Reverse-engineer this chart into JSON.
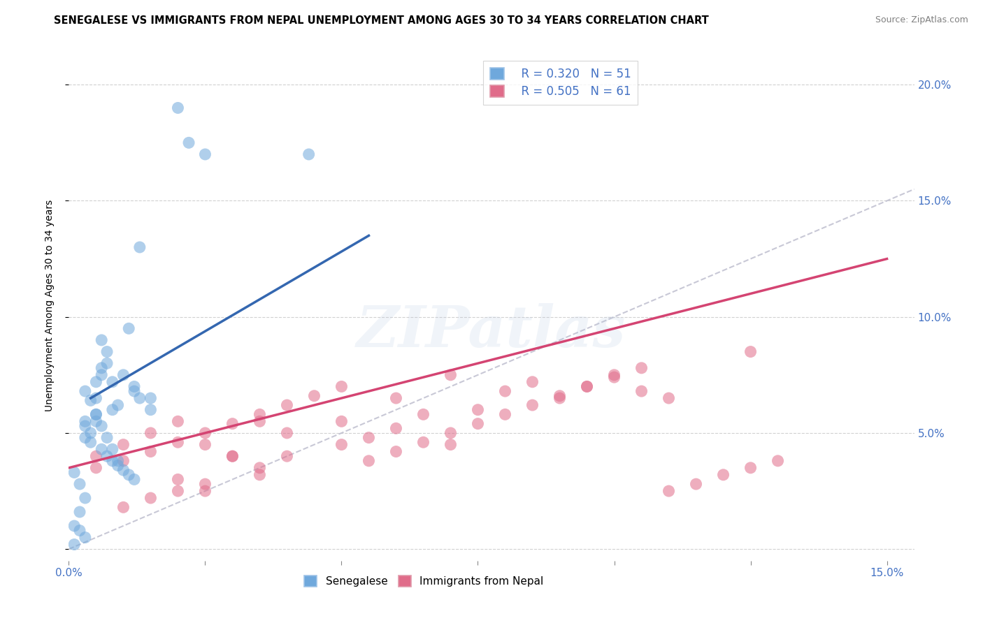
{
  "title": "SENEGALESE VS IMMIGRANTS FROM NEPAL UNEMPLOYMENT AMONG AGES 30 TO 34 YEARS CORRELATION CHART",
  "source": "Source: ZipAtlas.com",
  "ylabel": "Unemployment Among Ages 30 to 34 years",
  "xlim": [
    0.0,
    0.155
  ],
  "ylim": [
    -0.005,
    0.215
  ],
  "xticks": [
    0.0,
    0.025,
    0.05,
    0.075,
    0.1,
    0.125,
    0.15
  ],
  "xtick_labels": [
    "0.0%",
    "",
    "",
    "",
    "",
    "",
    "15.0%"
  ],
  "yticks": [
    0.0,
    0.05,
    0.1,
    0.15,
    0.2
  ],
  "ytick_right_labels": [
    "",
    "5.0%",
    "10.0%",
    "15.0%",
    "20.0%"
  ],
  "legend_blue_R": "R = 0.320",
  "legend_blue_N": "N = 51",
  "legend_pink_R": "R = 0.505",
  "legend_pink_N": "N = 61",
  "blue_color": "#6fa8dc",
  "pink_color": "#e06c8a",
  "blue_line_color": "#3467b0",
  "pink_line_color": "#d44472",
  "diag_line_color": "#bbbbcc",
  "grid_color": "#cccccc",
  "background_color": "#ffffff",
  "title_fontsize": 10.5,
  "label_fontsize": 10,
  "tick_fontsize": 11,
  "tick_color": "#4472c4",
  "source_fontsize": 9,
  "blue_scatter_x": [
    0.02,
    0.022,
    0.025,
    0.013,
    0.011,
    0.006,
    0.005,
    0.008,
    0.012,
    0.015,
    0.009,
    0.008,
    0.005,
    0.003,
    0.003,
    0.006,
    0.007,
    0.007,
    0.01,
    0.012,
    0.013,
    0.015,
    0.005,
    0.004,
    0.003,
    0.004,
    0.006,
    0.007,
    0.008,
    0.009,
    0.01,
    0.011,
    0.012,
    0.006,
    0.005,
    0.003,
    0.004,
    0.005,
    0.006,
    0.007,
    0.008,
    0.009,
    0.001,
    0.002,
    0.003,
    0.002,
    0.001,
    0.002,
    0.003,
    0.001,
    0.044
  ],
  "blue_scatter_y": [
    0.19,
    0.175,
    0.17,
    0.13,
    0.095,
    0.075,
    0.065,
    0.072,
    0.068,
    0.065,
    0.062,
    0.06,
    0.058,
    0.055,
    0.053,
    0.09,
    0.085,
    0.08,
    0.075,
    0.07,
    0.065,
    0.06,
    0.055,
    0.05,
    0.048,
    0.046,
    0.043,
    0.04,
    0.038,
    0.036,
    0.034,
    0.032,
    0.03,
    0.078,
    0.072,
    0.068,
    0.064,
    0.058,
    0.053,
    0.048,
    0.043,
    0.038,
    0.033,
    0.028,
    0.022,
    0.016,
    0.01,
    0.008,
    0.005,
    0.002,
    0.17
  ],
  "pink_scatter_x": [
    0.005,
    0.01,
    0.015,
    0.02,
    0.025,
    0.03,
    0.035,
    0.04,
    0.05,
    0.055,
    0.06,
    0.065,
    0.07,
    0.075,
    0.08,
    0.085,
    0.09,
    0.095,
    0.1,
    0.105,
    0.11,
    0.125,
    0.005,
    0.01,
    0.015,
    0.02,
    0.025,
    0.03,
    0.035,
    0.04,
    0.045,
    0.05,
    0.055,
    0.06,
    0.065,
    0.07,
    0.075,
    0.08,
    0.085,
    0.09,
    0.095,
    0.1,
    0.105,
    0.11,
    0.115,
    0.12,
    0.125,
    0.13,
    0.035,
    0.025,
    0.02,
    0.015,
    0.01,
    0.03,
    0.02,
    0.025,
    0.035,
    0.04,
    0.05,
    0.06,
    0.07
  ],
  "pink_scatter_y": [
    0.04,
    0.045,
    0.05,
    0.055,
    0.045,
    0.04,
    0.055,
    0.05,
    0.055,
    0.048,
    0.052,
    0.058,
    0.045,
    0.06,
    0.068,
    0.072,
    0.065,
    0.07,
    0.075,
    0.068,
    0.065,
    0.085,
    0.035,
    0.038,
    0.042,
    0.046,
    0.05,
    0.054,
    0.058,
    0.062,
    0.066,
    0.07,
    0.038,
    0.042,
    0.046,
    0.05,
    0.054,
    0.058,
    0.062,
    0.066,
    0.07,
    0.074,
    0.078,
    0.025,
    0.028,
    0.032,
    0.035,
    0.038,
    0.032,
    0.028,
    0.025,
    0.022,
    0.018,
    0.04,
    0.03,
    0.025,
    0.035,
    0.04,
    0.045,
    0.065,
    0.075
  ],
  "blue_line_x": [
    0.004,
    0.055
  ],
  "blue_line_y": [
    0.065,
    0.135
  ],
  "pink_line_x": [
    0.0,
    0.15
  ],
  "pink_line_y": [
    0.035,
    0.125
  ],
  "diag_line_x": [
    0.0,
    0.155
  ],
  "diag_line_y": [
    0.0,
    0.155
  ]
}
